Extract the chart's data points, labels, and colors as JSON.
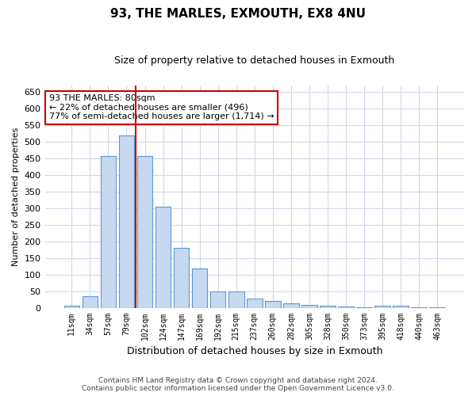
{
  "title1": "93, THE MARLES, EXMOUTH, EX8 4NU",
  "title2": "Size of property relative to detached houses in Exmouth",
  "xlabel": "Distribution of detached houses by size in Exmouth",
  "ylabel": "Number of detached properties",
  "categories": [
    "11sqm",
    "34sqm",
    "57sqm",
    "79sqm",
    "102sqm",
    "124sqm",
    "147sqm",
    "169sqm",
    "192sqm",
    "215sqm",
    "237sqm",
    "260sqm",
    "282sqm",
    "305sqm",
    "328sqm",
    "350sqm",
    "373sqm",
    "395sqm",
    "418sqm",
    "440sqm",
    "463sqm"
  ],
  "values": [
    5,
    35,
    457,
    520,
    457,
    305,
    180,
    118,
    50,
    50,
    27,
    20,
    13,
    8,
    5,
    3,
    2,
    5,
    5,
    2,
    2
  ],
  "bar_color": "#c5d9f1",
  "bar_edge_color": "#5b9bd5",
  "background_color": "#ffffff",
  "grid_color": "#d0d8e8",
  "annotation_line1": "93 THE MARLES: 80sqm",
  "annotation_line2": "← 22% of detached houses are smaller (496)",
  "annotation_line3": "77% of semi-detached houses are larger (1,714) →",
  "vline_x": 3.5,
  "vline_color": "#cc0000",
  "ylim": [
    0,
    670
  ],
  "yticks": [
    0,
    50,
    100,
    150,
    200,
    250,
    300,
    350,
    400,
    450,
    500,
    550,
    600,
    650
  ],
  "footer1": "Contains HM Land Registry data © Crown copyright and database right 2024.",
  "footer2": "Contains public sector information licensed under the Open Government Licence v3.0."
}
